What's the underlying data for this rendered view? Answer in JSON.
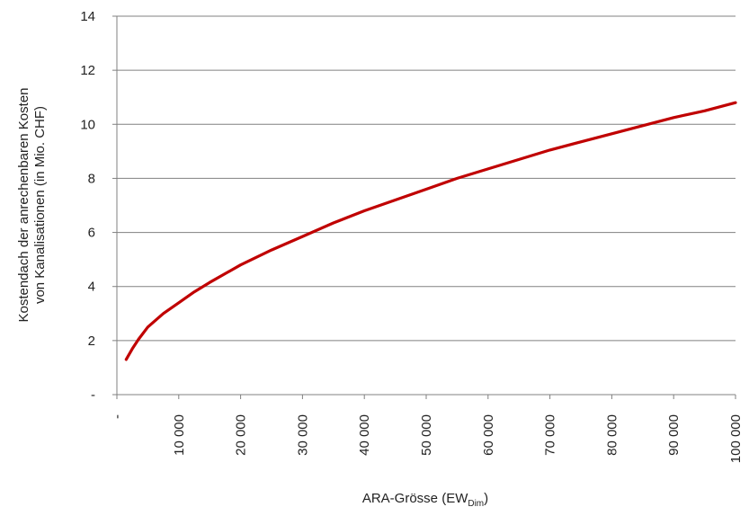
{
  "chart_data": {
    "type": "line",
    "title": "",
    "xlabel": "ARA-Grösse (EW",
    "xlabel_sub": "Dim",
    "xlabel_end": ")",
    "ylabel_line1": "Kostendach der anrechenbaren Kosten",
    "ylabel_line2": "von Kanalisationen (in Mio. CHF)",
    "xlim": [
      0,
      100000
    ],
    "ylim": [
      0,
      14
    ],
    "x_ticks": [
      0,
      10000,
      20000,
      30000,
      40000,
      50000,
      60000,
      70000,
      80000,
      90000,
      100000
    ],
    "x_tick_labels": [
      "-",
      "10 000",
      "20 000",
      "30 000",
      "40 000",
      "50 000",
      "60 000",
      "70 000",
      "80 000",
      "90 000",
      "100 000"
    ],
    "y_ticks": [
      0,
      2,
      4,
      6,
      8,
      10,
      12,
      14
    ],
    "y_tick_labels": [
      "-",
      "2",
      "4",
      "6",
      "8",
      "10",
      "12",
      "14"
    ],
    "grid": "horizontal",
    "line_color": "#c00000",
    "grid_color": "#808080",
    "series": [
      {
        "x": [
          1500,
          2500,
          3500,
          5000,
          7500,
          10000,
          12500,
          15000,
          20000,
          25000,
          30000,
          35000,
          40000,
          45000,
          50000,
          55000,
          60000,
          65000,
          70000,
          75000,
          80000,
          85000,
          90000,
          95000,
          100000
        ],
        "values": [
          1.3,
          1.7,
          2.05,
          2.5,
          3.0,
          3.4,
          3.8,
          4.15,
          4.8,
          5.35,
          5.85,
          6.35,
          6.8,
          7.2,
          7.6,
          8.0,
          8.35,
          8.7,
          9.05,
          9.35,
          9.65,
          9.95,
          10.25,
          10.5,
          10.8
        ]
      }
    ]
  }
}
